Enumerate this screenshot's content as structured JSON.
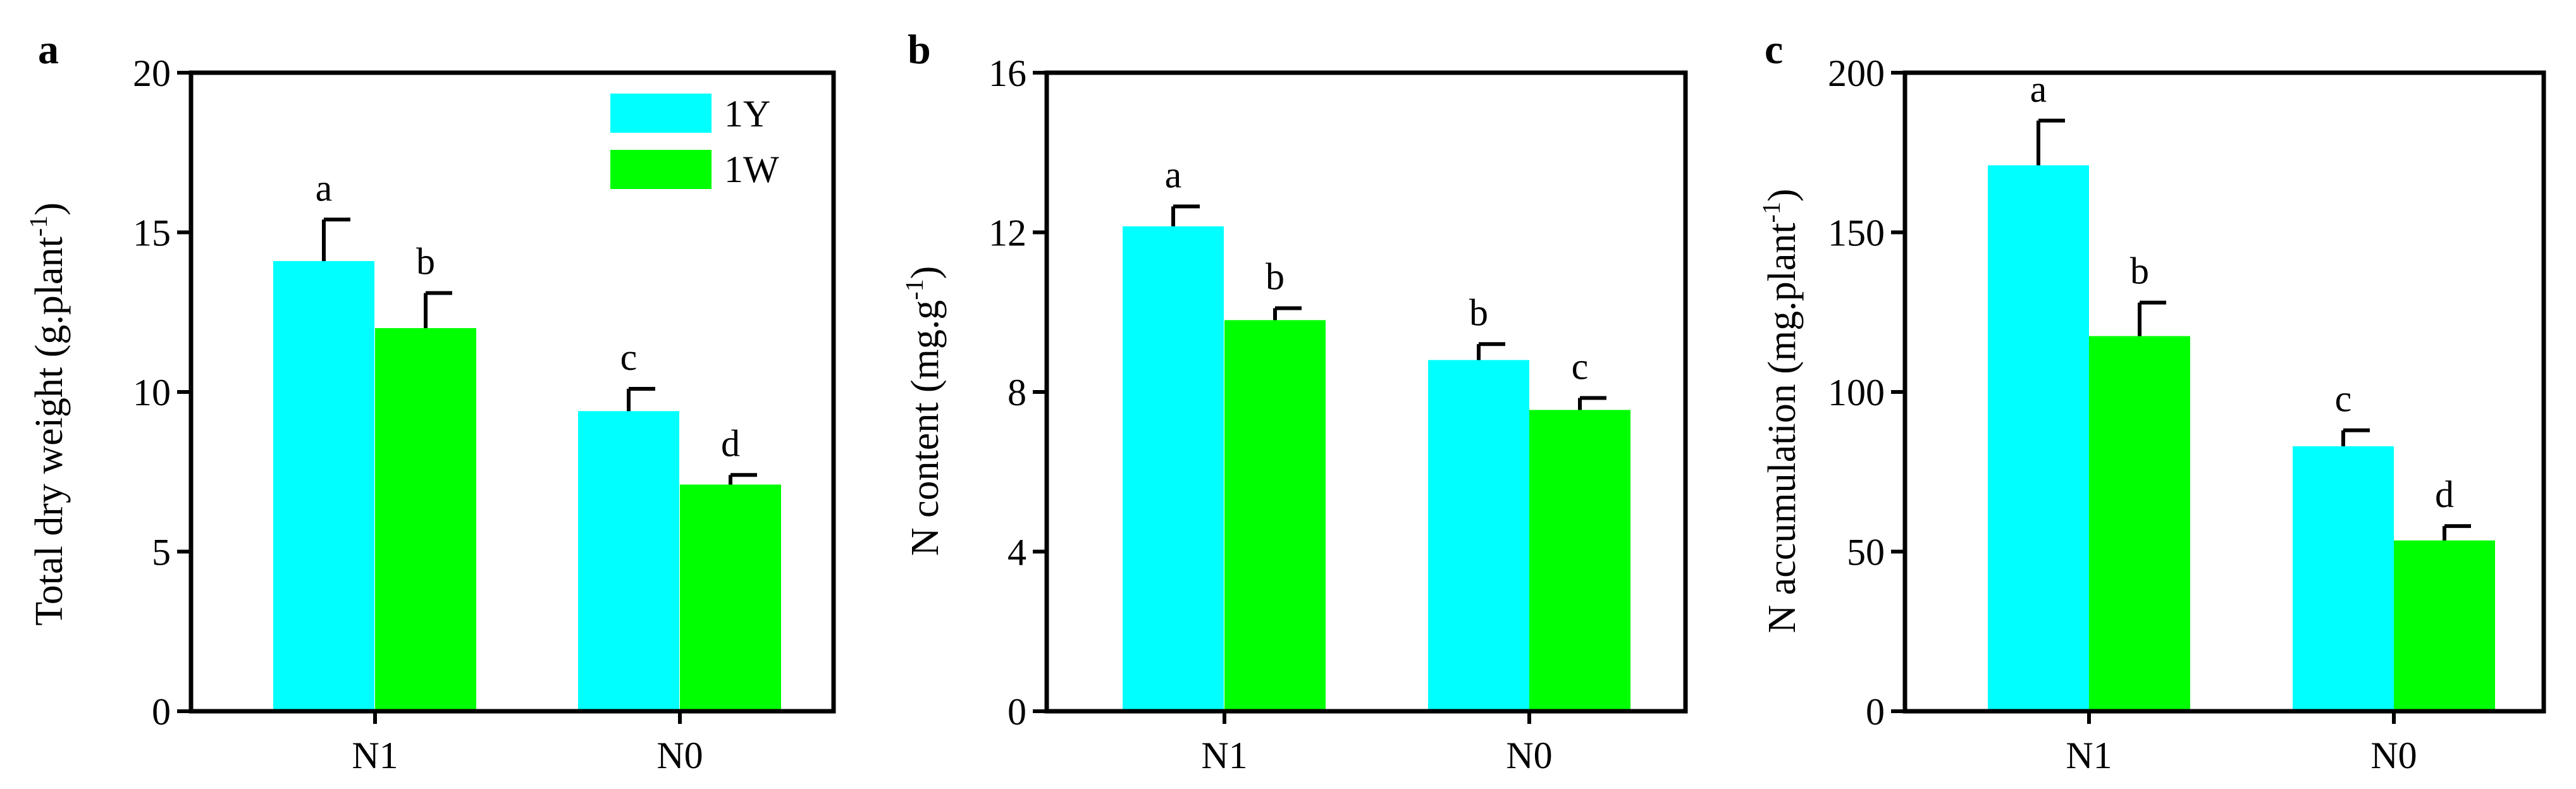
{
  "chart_data": [
    {
      "panel": "a",
      "type": "bar",
      "categories": [
        "N1",
        "N0"
      ],
      "series": [
        {
          "name": "1Y",
          "values": [
            14.1,
            9.4
          ],
          "errors": [
            1.3,
            0.7
          ],
          "labels": [
            "a",
            "c"
          ]
        },
        {
          "name": "1W",
          "values": [
            12.0,
            7.1
          ],
          "errors": [
            1.1,
            0.3
          ],
          "labels": [
            "b",
            "d"
          ]
        }
      ],
      "ylabel": {
        "main": "Total dry weight (g.plant",
        "sup": "-1",
        "end": ")"
      },
      "ylim": [
        0,
        20
      ],
      "yticks": [
        "0",
        "5",
        "10",
        "15",
        "20"
      ],
      "legend": {
        "position": "top-right",
        "entries": [
          "1Y",
          "1W"
        ]
      }
    },
    {
      "panel": "b",
      "type": "bar",
      "categories": [
        "N1",
        "N0"
      ],
      "series": [
        {
          "name": "1Y",
          "values": [
            12.15,
            8.8
          ],
          "errors": [
            0.5,
            0.4
          ],
          "labels": [
            "a",
            "b"
          ]
        },
        {
          "name": "1W",
          "values": [
            9.8,
            7.55
          ],
          "errors": [
            0.3,
            0.3
          ],
          "labels": [
            "b",
            "c"
          ]
        }
      ],
      "ylabel": {
        "main": "N content (mg.g",
        "sup": "-1",
        "end": ")"
      },
      "ylim": [
        0,
        16
      ],
      "yticks": [
        "0",
        "4",
        "8",
        "12",
        "16"
      ]
    },
    {
      "panel": "c",
      "type": "bar",
      "categories": [
        "N1",
        "N0"
      ],
      "series": [
        {
          "name": "1Y",
          "values": [
            171,
            83
          ],
          "errors": [
            14,
            5
          ],
          "labels": [
            "a",
            "c"
          ]
        },
        {
          "name": "1W",
          "values": [
            117.5,
            53.5
          ],
          "errors": [
            10.5,
            4.5
          ],
          "labels": [
            "b",
            "d"
          ]
        }
      ],
      "ylabel": {
        "main": "N accumulation (mg.plant",
        "sup": "-1",
        "end": ")"
      },
      "ylim": [
        0,
        200
      ],
      "yticks": [
        "0",
        "50",
        "100",
        "150",
        "200"
      ]
    }
  ],
  "colors": {
    "1Y": "#00FFFF",
    "1W": "#00FF00",
    "axis": "#000000"
  }
}
